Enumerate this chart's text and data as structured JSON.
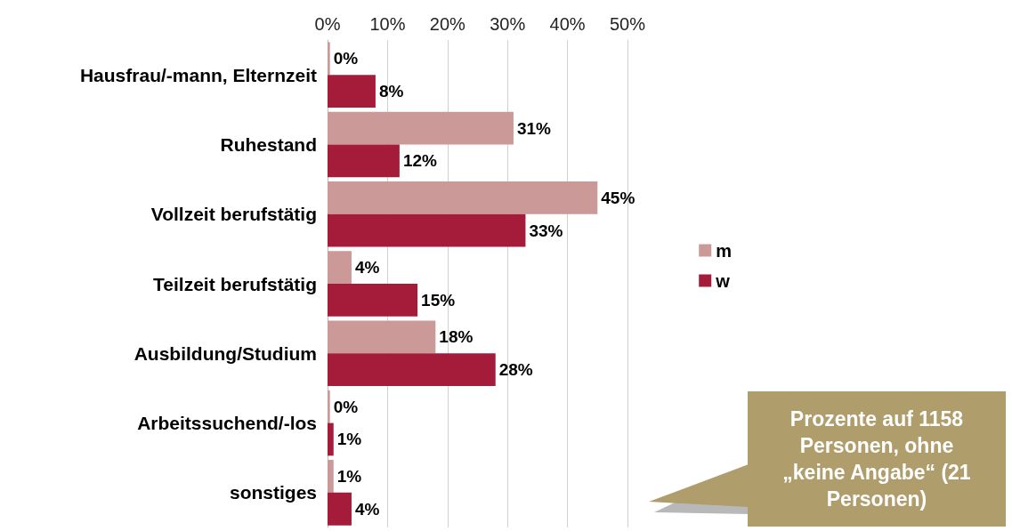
{
  "chart_data": {
    "type": "bar",
    "orientation": "horizontal",
    "categories": [
      "Hausfrau/-mann, Elternzeit",
      "Ruhestand",
      "Vollzeit berufstätig",
      "Teilzeit berufstätig",
      "Ausbildung/Studium",
      "Arbeitssuchend/-los",
      "sonstiges"
    ],
    "series": [
      {
        "name": "m",
        "color": "#cc9999",
        "values": [
          0.4,
          31,
          45,
          4,
          18,
          0.4,
          1
        ],
        "value_labels": [
          "0%",
          "31%",
          "45%",
          "4%",
          "18%",
          "0%",
          "1%"
        ]
      },
      {
        "name": "w",
        "color": "#a51c3a",
        "values": [
          8,
          12,
          33,
          15,
          28,
          1,
          4
        ],
        "value_labels": [
          "8%",
          "12%",
          "33%",
          "15%",
          "28%",
          "1%",
          "4%"
        ]
      }
    ],
    "xlim": [
      0,
      50
    ],
    "xticks": [
      {
        "value": 0,
        "label": "0%"
      },
      {
        "value": 10,
        "label": "10%"
      },
      {
        "value": 20,
        "label": "20%"
      },
      {
        "value": 30,
        "label": "30%"
      },
      {
        "value": 40,
        "label": "40%"
      },
      {
        "value": 50,
        "label": "50%"
      }
    ],
    "grid": "x",
    "legend": "right",
    "annotations": [
      "Prozente auf 1158 Personen, ohne „keine Angabe“ (21 Personen)"
    ]
  }
}
